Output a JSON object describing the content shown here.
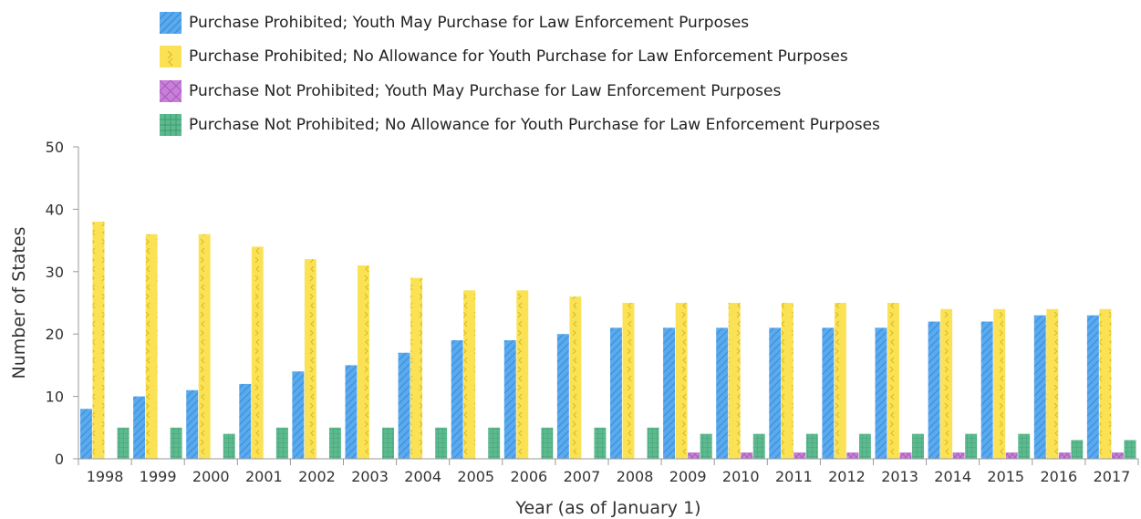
{
  "chart_data": {
    "type": "bar",
    "categories": [
      "1998",
      "1999",
      "2000",
      "2001",
      "2002",
      "2003",
      "2004",
      "2005",
      "2006",
      "2007",
      "2008",
      "2009",
      "2010",
      "2011",
      "2012",
      "2013",
      "2014",
      "2015",
      "2016",
      "2017"
    ],
    "series": [
      {
        "name": "Purchase Prohibited; Youth May Purchase for Law Enforcement Purposes",
        "color": "#5aaaf0",
        "values": [
          8,
          10,
          11,
          12,
          14,
          15,
          17,
          19,
          19,
          20,
          21,
          21,
          21,
          21,
          21,
          21,
          22,
          22,
          23,
          23
        ]
      },
      {
        "name": "Purchase Prohibited; No Allowance for Youth Purchase for Law Enforcement Purposes",
        "color": "#fbe255",
        "values": [
          38,
          36,
          36,
          34,
          32,
          31,
          29,
          27,
          27,
          26,
          25,
          25,
          25,
          25,
          25,
          25,
          24,
          24,
          24,
          24
        ]
      },
      {
        "name": "Purchase Not Prohibited; Youth May Purchase for Law Enforcement Purposes",
        "color": "#c97ed9",
        "values": [
          0,
          0,
          0,
          0,
          0,
          0,
          0,
          0,
          0,
          0,
          0,
          1,
          1,
          1,
          1,
          1,
          1,
          1,
          1,
          1
        ]
      },
      {
        "name": "Purchase Not Prohibited; No Allowance for Youth Purchase for Law Enforcement Purposes",
        "color": "#5dba8f",
        "values": [
          5,
          5,
          4,
          5,
          5,
          5,
          5,
          5,
          5,
          5,
          5,
          4,
          4,
          4,
          4,
          4,
          4,
          4,
          3,
          3
        ]
      }
    ],
    "xlabel": "Year (as of January 1)",
    "ylabel": "Number of States",
    "ylim": [
      0,
      50
    ],
    "yticks": [
      0,
      10,
      20,
      30,
      40,
      50
    ],
    "grid": false,
    "legend_position": "top"
  }
}
